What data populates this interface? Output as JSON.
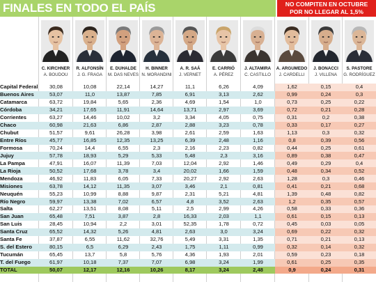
{
  "title": "FINALES EN TODO EL PAÍS",
  "note": {
    "line1": "NO COMPITEN EN OCTUBRE",
    "line2": "POR NO LLEGAR AL 1,5%"
  },
  "candidates": [
    {
      "name": "C. KIRCHNER",
      "vice": "A. BOUDOU",
      "hair": "#3a2a1e",
      "skin": "#e6c2a2",
      "suit": "#222222"
    },
    {
      "name": "R. ALFONSÍN",
      "vice": "J. G. FRAGA",
      "hair": "#2c241e",
      "skin": "#d9b08c",
      "suit": "#2a2f3a"
    },
    {
      "name": "E. DUHALDE",
      "vice": "M. DAS NEVES",
      "hair": "#7a7a7a",
      "skin": "#d2a07e",
      "suit": "#1e2430"
    },
    {
      "name": "H. BINNER",
      "vice": "N. MORANDINI",
      "hair": "#9a9a9a",
      "skin": "#dcb496",
      "suit": "#26303c"
    },
    {
      "name": "A. R. SAÁ",
      "vice": "J. VERNET",
      "hair": "#555555",
      "skin": "#d4a886",
      "suit": "#2b2b33"
    },
    {
      "name": "E. CARRIÓ",
      "vice": "A. PÉREZ",
      "hair": "#c9a46a",
      "skin": "#e7c4a6",
      "suit": "#3a3a3a"
    },
    {
      "name": "J. ALTAMIRA",
      "vice": "C. CASTILLO",
      "hair": "#dcdcdc",
      "skin": "#d8b092",
      "suit": "#3a3430"
    },
    {
      "name": "A. ARGUMEDO",
      "vice": "J. CARDELLI",
      "hair": "#3a2c22",
      "skin": "#e2bc9c",
      "suit": "#5a4a3e"
    },
    {
      "name": "J. BONACCI",
      "vice": "J. VILLENA",
      "hair": "#3a3a3a",
      "skin": "#d6ad8c",
      "suit": "#22262e"
    },
    {
      "name": "S. PASTORE",
      "vice": "G. RODRÍGUEZ",
      "hair": "#b8b8b8",
      "skin": "#dbb697",
      "suit": "#2a2e38"
    }
  ],
  "rows": [
    {
      "prov": "Capital Federal",
      "v": [
        "30,08",
        "10,08",
        "22,14",
        "14,27",
        "11,1",
        "6,26",
        "4,09",
        "1,62",
        "0,15",
        "0,4"
      ]
    },
    {
      "prov": "Buenos Aires",
      "v": [
        "53,07",
        "11,0",
        "13,87",
        "7,85",
        "6,91",
        "3,13",
        "2,62",
        "0,99",
        "0,24",
        "0,3"
      ]
    },
    {
      "prov": "Catamarca",
      "v": [
        "63,72",
        "19,84",
        "5,65",
        "2,36",
        "4,69",
        "1,54",
        "1,0",
        "0,73",
        "0,25",
        "0,22"
      ]
    },
    {
      "prov": "Córdoba",
      "v": [
        "34,21",
        "17,65",
        "11,91",
        "14,64",
        "13,71",
        "2,97",
        "3,69",
        "0,72",
        "0,21",
        "0,28"
      ]
    },
    {
      "prov": "Corrientes",
      "v": [
        "63,27",
        "14,46",
        "10,02",
        "3,2",
        "3,34",
        "4,05",
        "0,75",
        "0,31",
        "0,2",
        "0,38"
      ]
    },
    {
      "prov": "Chaco",
      "v": [
        "60,98",
        "21,63",
        "6,86",
        "2,87",
        "2,88",
        "3,23",
        "0,78",
        "0,33",
        "0,17",
        "0,27"
      ]
    },
    {
      "prov": "Chubut",
      "v": [
        "51,57",
        "9,61",
        "26,28",
        "3,98",
        "2,61",
        "2,59",
        "1,63",
        "1,13",
        "0,3",
        "0,32"
      ]
    },
    {
      "prov": "Entre Ríos",
      "v": [
        "45,77",
        "16,85",
        "12,35",
        "13,25",
        "6,39",
        "2,48",
        "1,16",
        "0,8",
        "0,39",
        "0,56"
      ]
    },
    {
      "prov": "Formosa",
      "v": [
        "70,24",
        "14,4",
        "6,55",
        "2,3",
        "2,16",
        "2,23",
        "0,82",
        "0,44",
        "0,25",
        "0,61"
      ]
    },
    {
      "prov": "Jujuy",
      "v": [
        "57,78",
        "18,93",
        "5,29",
        "5,33",
        "5,48",
        "2,3",
        "3,16",
        "0,89",
        "0,38",
        "0,47"
      ]
    },
    {
      "prov": "La Pampa",
      "v": [
        "47,91",
        "16,07",
        "11,39",
        "7,03",
        "12,04",
        "2,92",
        "1,46",
        "0,49",
        "0,29",
        "0,4"
      ]
    },
    {
      "prov": "La Rioja",
      "v": [
        "50,52",
        "17,68",
        "3,78",
        "3,4",
        "20,02",
        "1,66",
        "1,59",
        "0,48",
        "0,34",
        "0,52"
      ]
    },
    {
      "prov": "Mendoza",
      "v": [
        "46,92",
        "11,83",
        "6,05",
        "7,33",
        "20,27",
        "2,92",
        "2,63",
        "1,28",
        "0,3",
        "0,46"
      ]
    },
    {
      "prov": "Misiones",
      "v": [
        "63,78",
        "14,12",
        "11,35",
        "3,07",
        "3,46",
        "2,1",
        "0,81",
        "0,41",
        "0,21",
        "0,68"
      ]
    },
    {
      "prov": "Neuquén",
      "v": [
        "55,23",
        "10,99",
        "8,88",
        "9,87",
        "2,31",
        "5,21",
        "4,81",
        "1,39",
        "0,48",
        "0,82"
      ]
    },
    {
      "prov": "Río Negro",
      "v": [
        "59,97",
        "13,38",
        "7,02",
        "6,57",
        "4,8",
        "3,52",
        "2,63",
        "1,2",
        "0,35",
        "0,57"
      ]
    },
    {
      "prov": "Salta",
      "v": [
        "62,27",
        "13,51",
        "8,08",
        "5,11",
        "2,5",
        "2,99",
        "4,26",
        "0,58",
        "0,33",
        "0,36"
      ]
    },
    {
      "prov": "San Juan",
      "v": [
        "65,48",
        "7,51",
        "3,87",
        "2,8",
        "16,33",
        "2,03",
        "1,1",
        "0,61",
        "0,15",
        "0,13"
      ]
    },
    {
      "prov": "San Luis",
      "v": [
        "28,45",
        "10,94",
        "2,2",
        "3,01",
        "52,35",
        "1,78",
        "0,72",
        "0,45",
        "0,03",
        "0,05"
      ]
    },
    {
      "prov": "Santa Cruz",
      "v": [
        "65,52",
        "14,32",
        "5,26",
        "4,81",
        "2,63",
        "3,0",
        "3,24",
        "0,69",
        "0,22",
        "0,32"
      ]
    },
    {
      "prov": "Santa Fe",
      "v": [
        "37,87",
        "6,55",
        "11,62",
        "32,76",
        "5,49",
        "3,31",
        "1,35",
        "0,71",
        "0,21",
        "0,13"
      ]
    },
    {
      "prov": "S. del Estero",
      "v": [
        "80,15",
        "6,5",
        "6,29",
        "2,43",
        "1,75",
        "1,11",
        "0,99",
        "0,32",
        "0,14",
        "0,32"
      ]
    },
    {
      "prov": "Tucumán",
      "v": [
        "65,45",
        "13,7",
        "5,8",
        "5,76",
        "4,36",
        "1,93",
        "2,01",
        "0,59",
        "0,23",
        "0,18"
      ]
    },
    {
      "prov": "T. del Fuego",
      "v": [
        "61,97",
        "10,18",
        "7,37",
        "7,07",
        "6,98",
        "3,24",
        "1,99",
        "0,61",
        "0,25",
        "0,35"
      ]
    },
    {
      "prov": "TOTAL",
      "v": [
        "50,07",
        "12,17",
        "12,16",
        "10,26",
        "8,17",
        "3,24",
        "2,48",
        "0,9",
        "0,24",
        "0,31"
      ]
    }
  ]
}
